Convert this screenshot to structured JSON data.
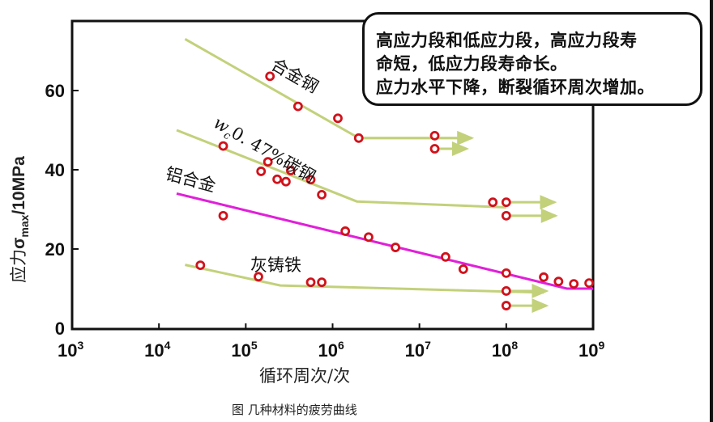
{
  "chart_data": {
    "type": "line",
    "title": "",
    "caption": "图  几种材料的疲劳曲线",
    "xlabel": "循环周次/次",
    "ylabel": "应力σmax/10MPa",
    "xscale": "log",
    "xlim": [
      1000,
      1000000000
    ],
    "ylim": [
      0,
      70
    ],
    "x_ticks": [
      {
        "base": "10",
        "exp": "3",
        "value": 1000
      },
      {
        "base": "10",
        "exp": "4",
        "value": 10000
      },
      {
        "base": "10",
        "exp": "5",
        "value": 100000
      },
      {
        "base": "10",
        "exp": "6",
        "value": 1000000
      },
      {
        "base": "10",
        "exp": "7",
        "value": 10000000
      },
      {
        "base": "10",
        "exp": "8",
        "value": 100000000
      },
      {
        "base": "10",
        "exp": "9",
        "value": 1000000000
      }
    ],
    "y_ticks": [
      "0",
      "20",
      "40",
      "60"
    ],
    "grid": false,
    "legend": "inline labels",
    "series": [
      {
        "name": "合金钢",
        "color": "#c2d17a",
        "curve": [
          [
            20000,
            73
          ],
          [
            2000000,
            48
          ],
          [
            40000000,
            48
          ]
        ],
        "arrows": [
          [
            2000000,
            48,
            40000000
          ],
          [
            15000000,
            45.3,
            35000000
          ]
        ],
        "points": [
          [
            190000,
            63.6
          ],
          [
            400000,
            56
          ],
          [
            1150000,
            53
          ],
          [
            2000000,
            48
          ],
          [
            15000000,
            48.6
          ],
          [
            15000000,
            45.3
          ]
        ]
      },
      {
        "name": "wc0.47%碳钢",
        "label_subscript": "c",
        "label_prefix": "w",
        "label_suffix": "0. 47%碳钢",
        "color": "#c2d17a",
        "curve": [
          [
            16000,
            50
          ],
          [
            1900000,
            32
          ],
          [
            100000000,
            30.5
          ]
        ],
        "arrows": [
          [
            100000000,
            31.8,
            360000000
          ],
          [
            100000000,
            28.4,
            370000000
          ]
        ],
        "points": [
          [
            55000,
            46
          ],
          [
            180000,
            42
          ],
          [
            150000,
            39.6
          ],
          [
            230000,
            37.6
          ],
          [
            290000,
            37
          ],
          [
            330000,
            39.8
          ],
          [
            560000,
            37.5
          ],
          [
            750000,
            33.7
          ],
          [
            70000000,
            31.8
          ],
          [
            100000000,
            31.8
          ],
          [
            100000000,
            28.4
          ]
        ]
      },
      {
        "name": "铝合金",
        "color": "#e020d8",
        "curve": [
          [
            16000,
            34
          ],
          [
            500000000,
            10
          ],
          [
            1000000000,
            10
          ]
        ],
        "arrows": [],
        "points": [
          [
            55000,
            28.4
          ],
          [
            1400000,
            24.5
          ],
          [
            2600000,
            23
          ],
          [
            5300000,
            20.4
          ],
          [
            20000000,
            18
          ],
          [
            32000000,
            14.9
          ],
          [
            100000000,
            13.9
          ],
          [
            270000000,
            12.9
          ],
          [
            400000000,
            11.8
          ],
          [
            600000000,
            11.2
          ],
          [
            900000000,
            11.4
          ]
        ]
      },
      {
        "name": "灰铸铁",
        "color": "#c2d17a",
        "curve": [
          [
            20000,
            16
          ],
          [
            250000,
            10.8
          ],
          [
            270000000,
            9
          ]
        ],
        "arrows": [
          [
            100000000,
            9.4,
            290000000
          ],
          [
            100000000,
            5.7,
            290000000
          ]
        ],
        "points": [
          [
            30000,
            15.9
          ],
          [
            140000,
            13
          ],
          [
            560000,
            11.6
          ],
          [
            750000,
            11.6
          ],
          [
            100000000,
            9.4
          ],
          [
            100000000,
            5.7
          ]
        ]
      }
    ],
    "annotation": {
      "lines": [
        "高应力段和低应力段，高应力段寿",
        "命短，低应力段寿命长。",
        "应力水平下降，断裂循环周次增加。"
      ]
    }
  },
  "labels": {
    "alloy_steel": "合金钢",
    "carbon_steel_w": "w",
    "carbon_steel_sub": "c",
    "carbon_steel_rest": "0. 47%碳钢",
    "aluminum": "铝合金",
    "gray_iron": "灰铸铁",
    "ylabel_cn": "应力",
    "ylabel_sigma": "σ",
    "ylabel_sub": "max",
    "ylabel_unit": "/10MPa",
    "xlabel": "循环周次/次",
    "caption": "图  几种材料的疲劳曲线"
  },
  "colors": {
    "green_line": "#c2d17a",
    "magenta_line": "#e020d8",
    "marker": "#d0121b",
    "axis": "#111111"
  }
}
